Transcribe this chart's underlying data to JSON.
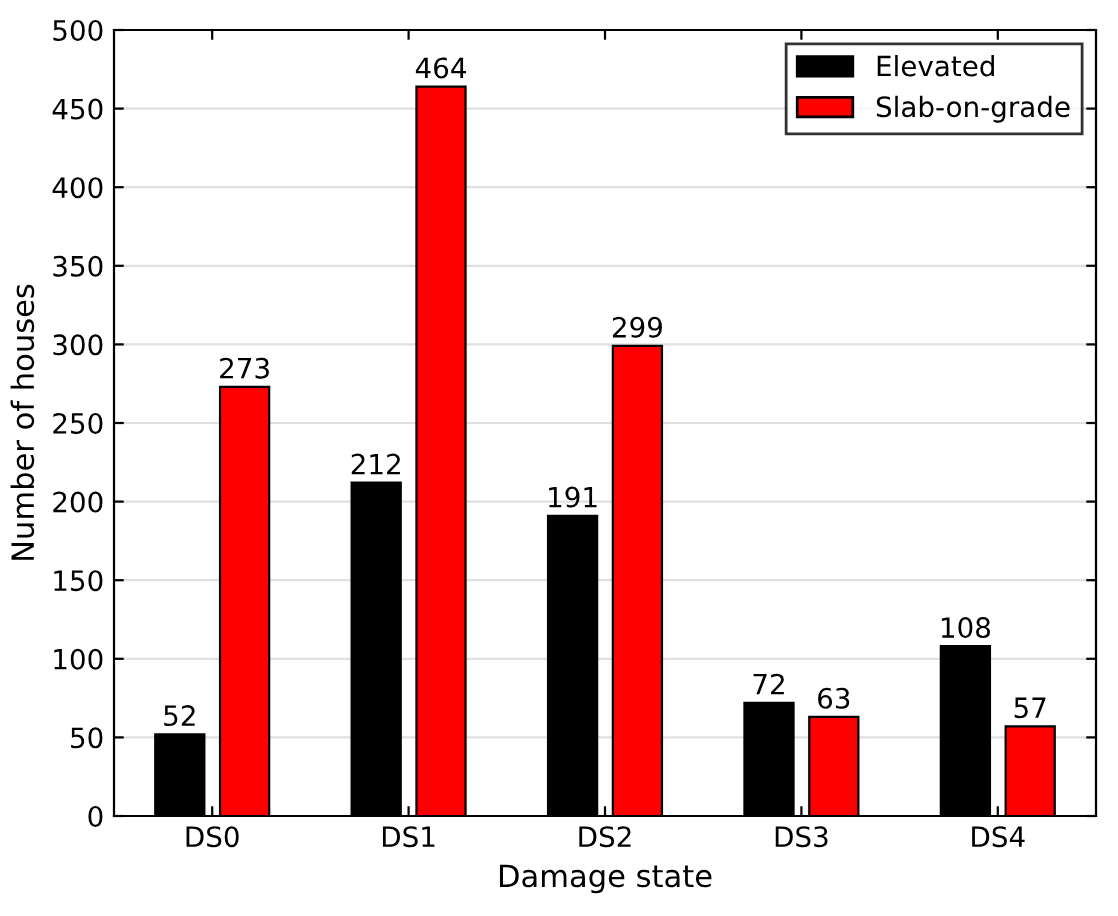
{
  "chart_data": {
    "type": "bar",
    "xlabel": "Damage state",
    "ylabel": "Number of houses",
    "categories": [
      "DS0",
      "DS1",
      "DS2",
      "DS3",
      "DS4"
    ],
    "series": [
      {
        "name": "Elevated",
        "color": "#000000",
        "values": [
          52,
          212,
          191,
          72,
          108
        ]
      },
      {
        "name": "Slab-on-grade",
        "color": "#ff0000",
        "values": [
          273,
          464,
          299,
          63,
          57
        ]
      }
    ],
    "ylim": [
      0,
      500
    ],
    "yticks": [
      0,
      50,
      100,
      150,
      200,
      250,
      300,
      350,
      400,
      450,
      500
    ],
    "grid": "y",
    "legend": "top right",
    "data_labels": true
  }
}
